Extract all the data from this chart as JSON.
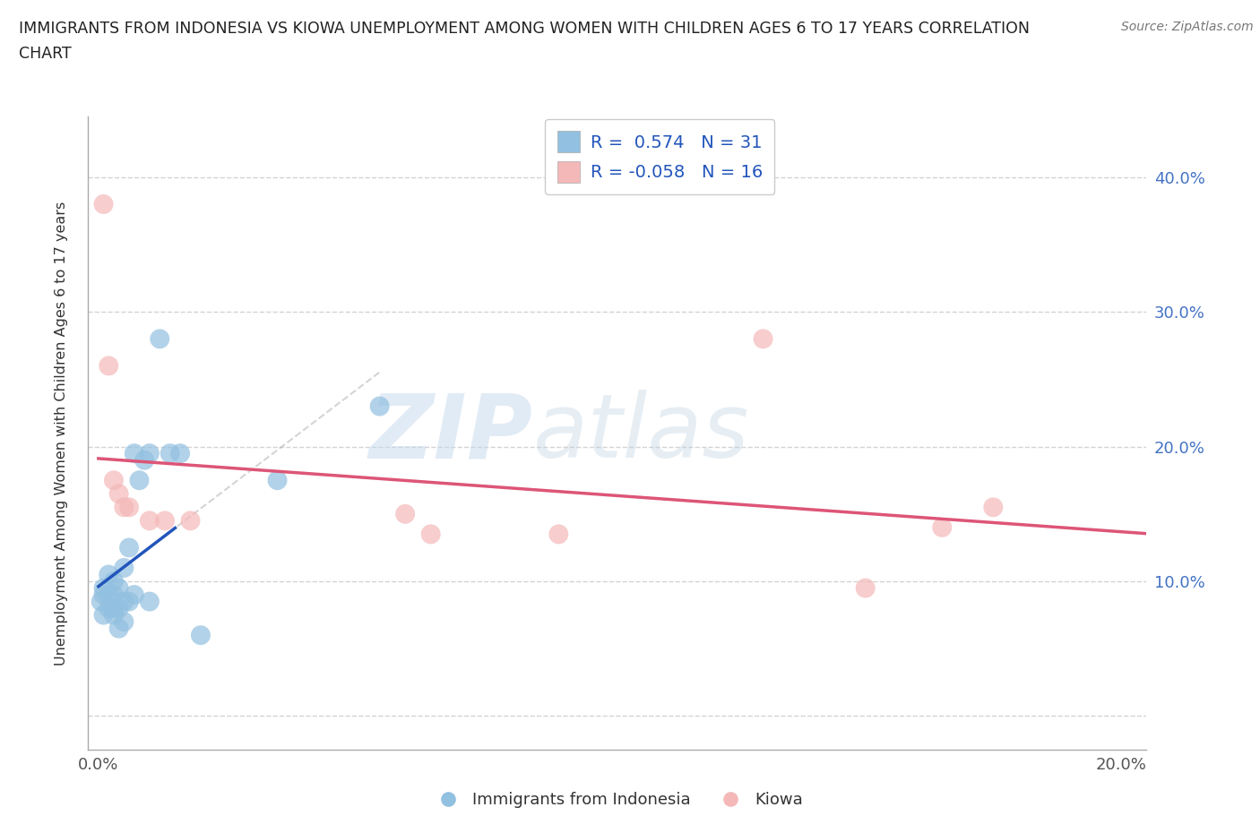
{
  "title_line1": "IMMIGRANTS FROM INDONESIA VS KIOWA UNEMPLOYMENT AMONG WOMEN WITH CHILDREN AGES 6 TO 17 YEARS CORRELATION",
  "title_line2": "CHART",
  "source": "Source: ZipAtlas.com",
  "ylabel": "Unemployment Among Women with Children Ages 6 to 17 years",
  "xlim": [
    -0.002,
    0.205
  ],
  "ylim": [
    -0.025,
    0.445
  ],
  "blue_color": "#92c0e0",
  "pink_color": "#f4b8b8",
  "blue_line_color": "#2255bb",
  "pink_line_color": "#dd5577",
  "r_blue": "0.574",
  "n_blue": "31",
  "r_pink": "-0.058",
  "n_pink": "16",
  "watermark_zip": "ZIP",
  "watermark_atlas": "atlas",
  "legend_label_blue": "Immigrants from Indonesia",
  "legend_label_pink": "Kiowa",
  "blue_scatter_x": [
    0.0005,
    0.001,
    0.001,
    0.001,
    0.002,
    0.002,
    0.002,
    0.003,
    0.003,
    0.003,
    0.003,
    0.004,
    0.004,
    0.004,
    0.005,
    0.005,
    0.005,
    0.006,
    0.006,
    0.007,
    0.007,
    0.008,
    0.009,
    0.01,
    0.01,
    0.012,
    0.014,
    0.016,
    0.02,
    0.035,
    0.055
  ],
  "blue_scatter_y": [
    0.085,
    0.09,
    0.095,
    0.075,
    0.08,
    0.09,
    0.105,
    0.075,
    0.08,
    0.09,
    0.1,
    0.065,
    0.08,
    0.095,
    0.07,
    0.085,
    0.11,
    0.125,
    0.085,
    0.09,
    0.195,
    0.175,
    0.19,
    0.085,
    0.195,
    0.28,
    0.195,
    0.195,
    0.06,
    0.175,
    0.23
  ],
  "pink_scatter_x": [
    0.001,
    0.002,
    0.003,
    0.004,
    0.005,
    0.006,
    0.01,
    0.013,
    0.018,
    0.06,
    0.065,
    0.09,
    0.13,
    0.15,
    0.165,
    0.175
  ],
  "pink_scatter_y": [
    0.38,
    0.26,
    0.175,
    0.165,
    0.155,
    0.155,
    0.145,
    0.145,
    0.145,
    0.15,
    0.135,
    0.135,
    0.28,
    0.095,
    0.14,
    0.155
  ],
  "background_color": "#ffffff",
  "grid_color": "#c8c8c8"
}
